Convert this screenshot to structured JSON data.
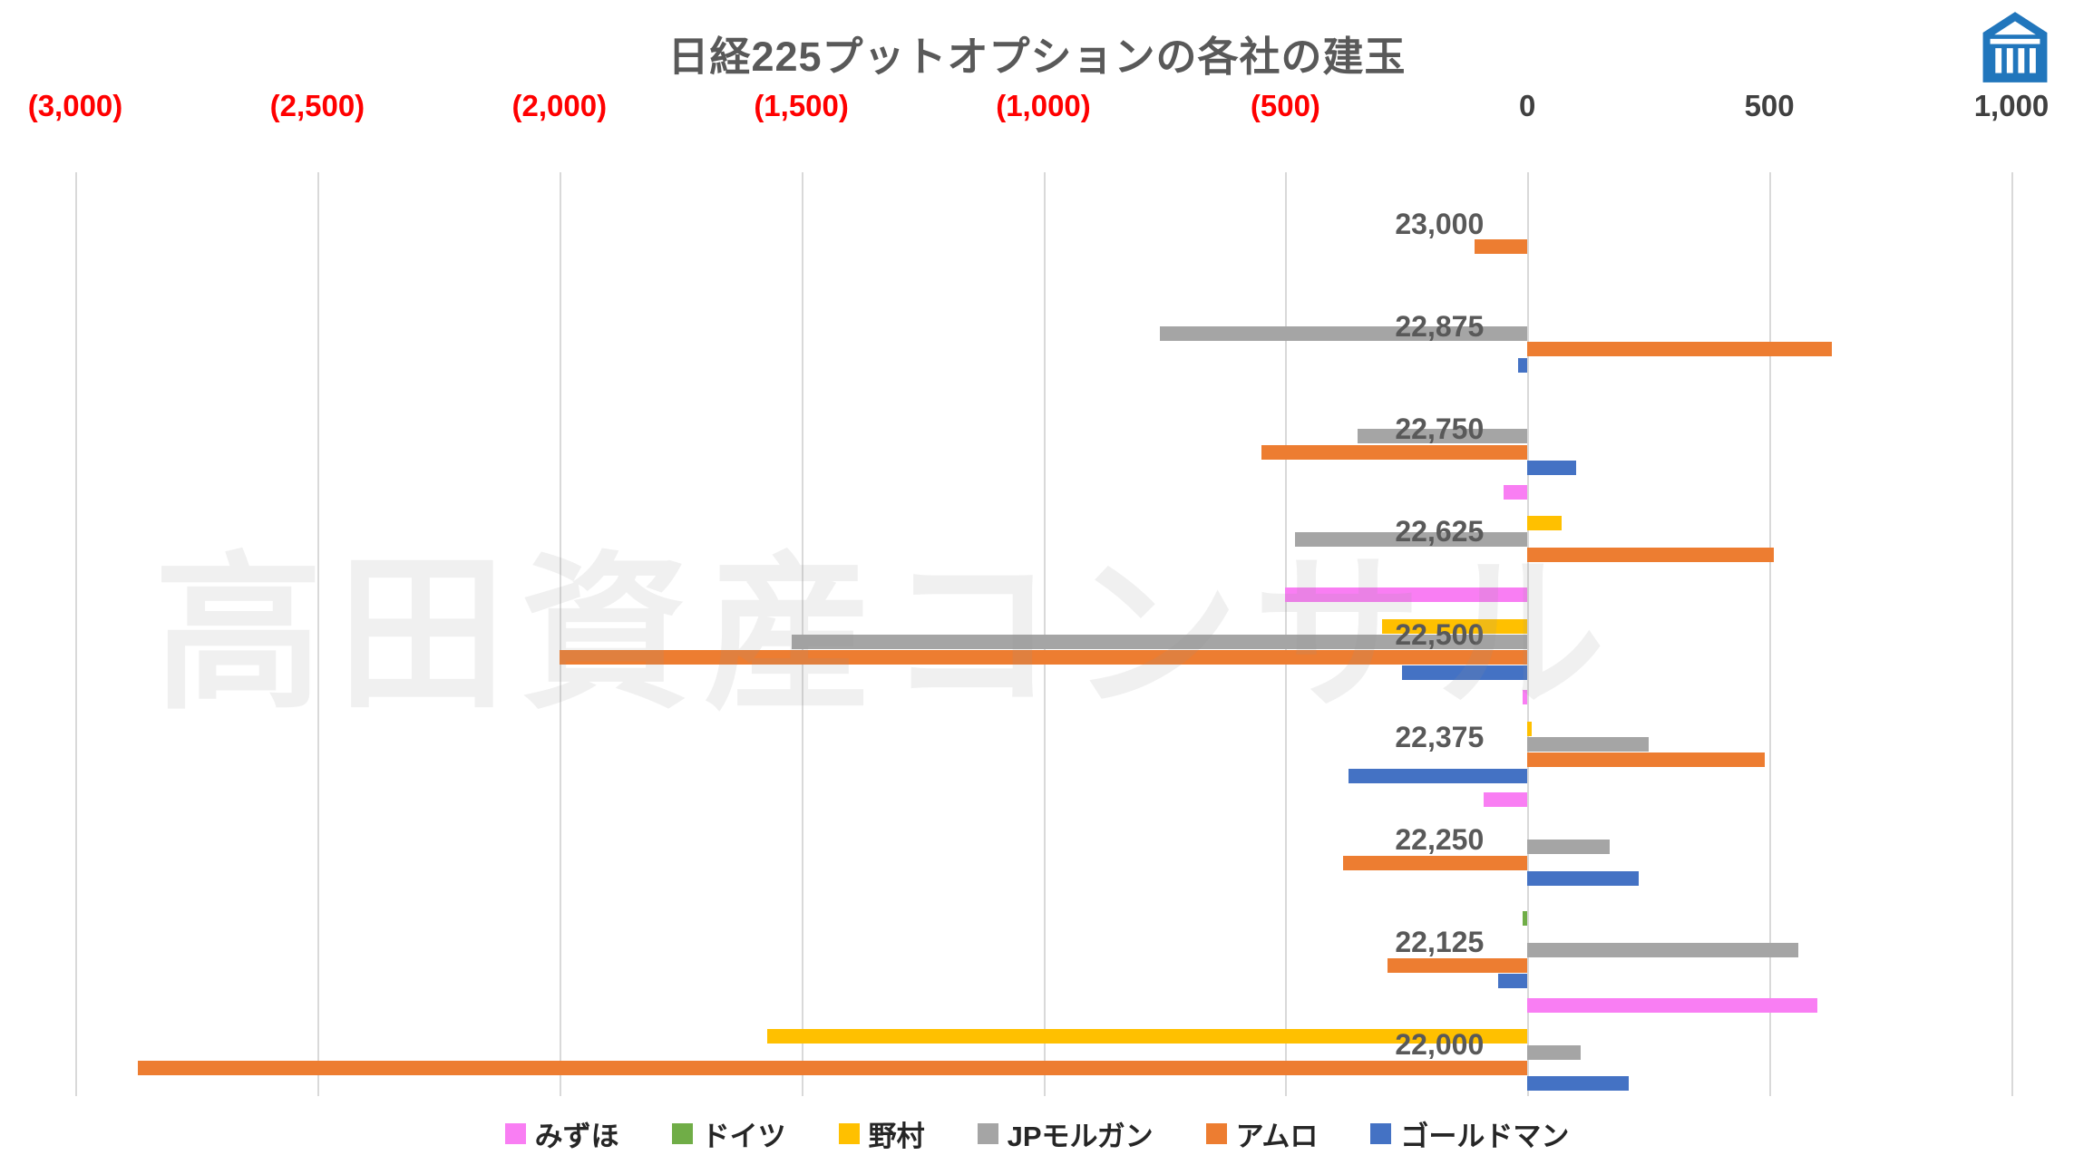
{
  "watermark": {
    "text": "高田資産コンサル"
  },
  "logo": {
    "name": "takada-shisan-consul-logo",
    "color": "#2176BC"
  },
  "chart_data": {
    "type": "bar",
    "orientation": "horizontal",
    "title": "日経225プットオプションの各社の建玉",
    "xlim": [
      -3000,
      1000
    ],
    "grid": true,
    "legend_position": "bottom",
    "negative_tick_color": "#FF0000",
    "positive_tick_color": "#404040",
    "x_ticks": [
      {
        "label": "(3,000)",
        "value": -3000,
        "negative": true
      },
      {
        "label": "(2,500)",
        "value": -2500,
        "negative": true
      },
      {
        "label": "(2,000)",
        "value": -2000,
        "negative": true
      },
      {
        "label": "(1,500)",
        "value": -1500,
        "negative": true
      },
      {
        "label": "(1,000)",
        "value": -1000,
        "negative": true
      },
      {
        "label": "(500)",
        "value": -500,
        "negative": true
      },
      {
        "label": "0",
        "value": 0,
        "negative": false
      },
      {
        "label": "500",
        "value": 500,
        "negative": false
      },
      {
        "label": "1,000",
        "value": 1000,
        "negative": false
      }
    ],
    "categories": [
      "23,000",
      "22,875",
      "22,750",
      "22,625",
      "22,500",
      "22,375",
      "22,250",
      "22,125",
      "22,000"
    ],
    "series": [
      {
        "name": "みずほ",
        "color": "#F97EF3",
        "values": [
          0,
          0,
          0,
          -50,
          -500,
          -10,
          -90,
          0,
          600
        ]
      },
      {
        "name": "ドイツ",
        "color": "#70AD47",
        "values": [
          0,
          0,
          0,
          0,
          0,
          0,
          0,
          -10,
          0
        ]
      },
      {
        "name": "野村",
        "color": "#FFC000",
        "values": [
          0,
          0,
          0,
          70,
          -300,
          10,
          0,
          0,
          -1570
        ]
      },
      {
        "name": "JPモルガン",
        "color": "#A5A5A5",
        "values": [
          0,
          -760,
          -350,
          -480,
          -1520,
          250,
          170,
          560,
          110
        ]
      },
      {
        "name": "アムロ",
        "color": "#ED7D31",
        "values": [
          -110,
          630,
          -550,
          510,
          -2000,
          490,
          -380,
          -290,
          -2870
        ]
      },
      {
        "name": "ゴールドマン",
        "color": "#4472C4",
        "values": [
          0,
          -20,
          100,
          0,
          -260,
          -370,
          230,
          -60,
          210
        ]
      }
    ]
  }
}
